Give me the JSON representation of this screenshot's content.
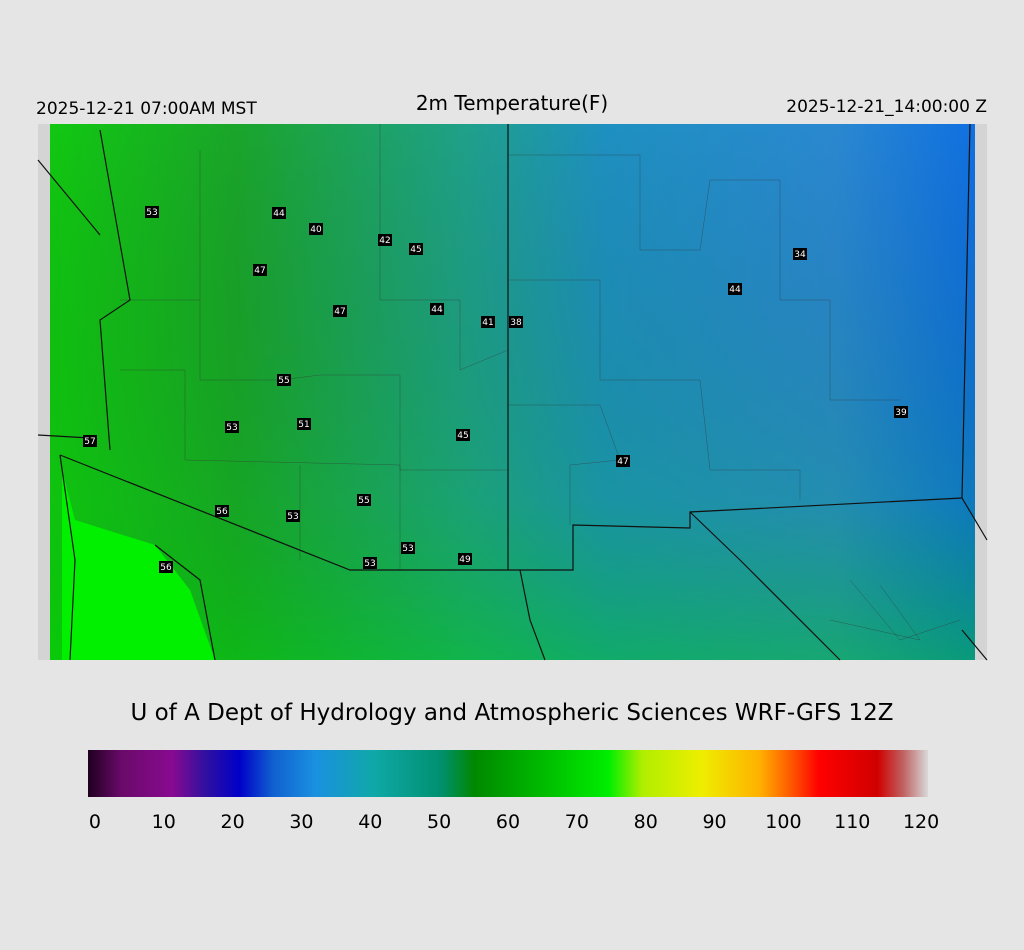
{
  "header": {
    "left": "2025-12-21 07:00AM MST",
    "title": "2m Temperature(F)",
    "right": "2025-12-21_14:00:00 Z"
  },
  "stations": [
    53,
    44,
    40,
    42,
    45,
    47,
    34,
    44,
    47,
    44,
    41,
    38,
    55,
    39,
    53,
    51,
    57,
    45,
    47,
    55,
    56,
    53,
    53,
    49,
    53,
    56
  ],
  "credit": "U of A Dept of Hydrology and Atmospheric Sciences WRF-GFS 12Z",
  "colorbar": {
    "range": [
      -1,
      121
    ],
    "ticks": [
      0,
      10,
      20,
      30,
      40,
      50,
      60,
      70,
      80,
      90,
      100,
      110,
      120
    ]
  }
}
